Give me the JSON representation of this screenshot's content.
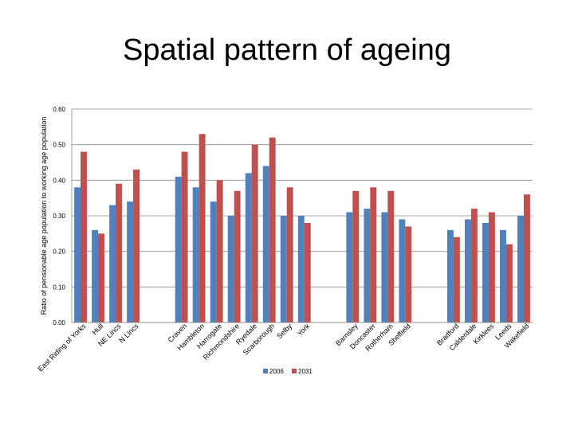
{
  "page": {
    "title": "Spatial pattern of ageing"
  },
  "chart_data": {
    "type": "bar",
    "title": "Spatial pattern of ageing",
    "xlabel": "",
    "ylabel": "Ratio of pensionable age population to working age population",
    "ylim": [
      0,
      0.6
    ],
    "yticks": [
      "0.00",
      "0.10",
      "0.20",
      "0.30",
      "0.40",
      "0.50",
      "0.60"
    ],
    "grid": true,
    "legend_position": "bottom",
    "colors": {
      "2006": "#4f81bd",
      "2031": "#c0504d"
    },
    "groups": [
      {
        "categories": [
          "East Riding of Yorks",
          "Hull",
          "NE Lincs",
          "N Lincs"
        ],
        "v2006": [
          0.38,
          0.26,
          0.33,
          0.34
        ],
        "v2031": [
          0.48,
          0.25,
          0.39,
          0.43
        ]
      },
      {
        "categories": [
          "Craven",
          "Hambleton",
          "Harrogate",
          "Richmondshire",
          "Ryedale",
          "Scarborough",
          "Selby",
          "York"
        ],
        "v2006": [
          0.41,
          0.38,
          0.34,
          0.3,
          0.42,
          0.44,
          0.3,
          0.3
        ],
        "v2031": [
          0.48,
          0.53,
          0.4,
          0.37,
          0.5,
          0.52,
          0.38,
          0.28
        ]
      },
      {
        "categories": [
          "Barnsley",
          "Doncaster",
          "Rotherham",
          "Sheffield"
        ],
        "v2006": [
          0.31,
          0.32,
          0.31,
          0.29
        ],
        "v2031": [
          0.37,
          0.38,
          0.37,
          0.27
        ]
      },
      {
        "categories": [
          "Bradford",
          "Calderdale",
          "Kirklees",
          "Leeds",
          "Wakefield"
        ],
        "v2006": [
          0.26,
          0.29,
          0.28,
          0.26,
          0.3
        ],
        "v2031": [
          0.24,
          0.32,
          0.31,
          0.22,
          0.36
        ]
      }
    ],
    "series": [
      {
        "name": "2006",
        "values": [
          0.38,
          0.26,
          0.33,
          0.34,
          0.41,
          0.38,
          0.34,
          0.3,
          0.42,
          0.44,
          0.3,
          0.3,
          0.31,
          0.32,
          0.31,
          0.29,
          0.26,
          0.29,
          0.28,
          0.26,
          0.3
        ]
      },
      {
        "name": "2031",
        "values": [
          0.48,
          0.25,
          0.39,
          0.43,
          0.48,
          0.53,
          0.4,
          0.37,
          0.5,
          0.52,
          0.38,
          0.28,
          0.37,
          0.38,
          0.37,
          0.27,
          0.24,
          0.32,
          0.31,
          0.22,
          0.36
        ]
      }
    ],
    "legend": [
      "2006",
      "2031"
    ]
  }
}
